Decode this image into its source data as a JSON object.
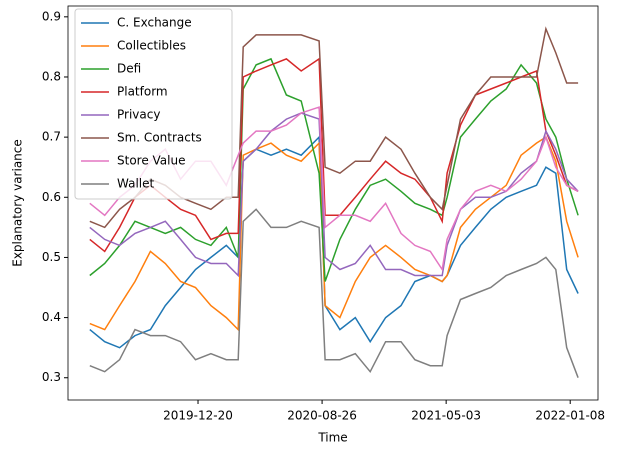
{
  "chart_data": {
    "type": "line",
    "xlabel": "Time",
    "ylabel": "Explanatory variance",
    "x": [
      "2019-05-16",
      "2019-06-15",
      "2019-07-15",
      "2019-08-15",
      "2019-09-15",
      "2019-10-15",
      "2019-11-15",
      "2019-12-15",
      "2020-01-15",
      "2020-02-15",
      "2020-03-10",
      "2020-03-20",
      "2020-04-15",
      "2020-05-15",
      "2020-06-15",
      "2020-07-15",
      "2020-08-20",
      "2020-09-01",
      "2020-10-01",
      "2020-11-01",
      "2020-12-01",
      "2021-01-01",
      "2021-02-01",
      "2021-03-01",
      "2021-04-01",
      "2021-04-25",
      "2021-05-05",
      "2021-06-01",
      "2021-07-01",
      "2021-08-01",
      "2021-09-01",
      "2021-10-01",
      "2021-11-01",
      "2021-11-20",
      "2021-12-10",
      "2022-01-01",
      "2022-01-24"
    ],
    "series": [
      {
        "name": "C. Exchange",
        "color": "#1f77b4",
        "values": [
          0.38,
          0.36,
          0.35,
          0.37,
          0.38,
          0.42,
          0.45,
          0.48,
          0.5,
          0.52,
          0.5,
          0.66,
          0.68,
          0.67,
          0.68,
          0.67,
          0.7,
          0.42,
          0.38,
          0.4,
          0.36,
          0.4,
          0.42,
          0.46,
          0.47,
          0.46,
          0.47,
          0.52,
          0.55,
          0.58,
          0.6,
          0.61,
          0.62,
          0.65,
          0.64,
          0.48,
          0.44
        ]
      },
      {
        "name": "Collectibles",
        "color": "#ff7f0e",
        "values": [
          0.39,
          0.38,
          0.42,
          0.46,
          0.51,
          0.49,
          0.46,
          0.45,
          0.42,
          0.4,
          0.38,
          0.67,
          0.68,
          0.69,
          0.67,
          0.66,
          0.69,
          0.42,
          0.4,
          0.46,
          0.5,
          0.52,
          0.5,
          0.48,
          0.47,
          0.46,
          0.47,
          0.55,
          0.58,
          0.6,
          0.62,
          0.67,
          0.69,
          0.7,
          0.66,
          0.56,
          0.5
        ]
      },
      {
        "name": "Defi",
        "color": "#2ca02c",
        "values": [
          0.47,
          0.49,
          0.52,
          0.56,
          0.55,
          0.54,
          0.55,
          0.53,
          0.52,
          0.55,
          0.5,
          0.78,
          0.82,
          0.83,
          0.77,
          0.76,
          0.64,
          0.46,
          0.53,
          0.58,
          0.62,
          0.63,
          0.61,
          0.59,
          0.58,
          0.57,
          0.6,
          0.7,
          0.73,
          0.76,
          0.78,
          0.82,
          0.79,
          0.73,
          0.7,
          0.63,
          0.57
        ]
      },
      {
        "name": "Platform",
        "color": "#d62728",
        "values": [
          0.53,
          0.51,
          0.55,
          0.6,
          0.62,
          0.6,
          0.58,
          0.57,
          0.53,
          0.54,
          0.54,
          0.8,
          0.81,
          0.82,
          0.83,
          0.81,
          0.83,
          0.57,
          0.57,
          0.6,
          0.63,
          0.66,
          0.64,
          0.63,
          0.6,
          0.56,
          0.64,
          0.72,
          0.77,
          0.78,
          0.79,
          0.8,
          0.81,
          0.71,
          0.67,
          0.62,
          0.61
        ]
      },
      {
        "name": "Privacy",
        "color": "#9467bd",
        "values": [
          0.55,
          0.53,
          0.52,
          0.54,
          0.55,
          0.56,
          0.53,
          0.5,
          0.49,
          0.49,
          0.47,
          0.66,
          0.68,
          0.71,
          0.73,
          0.74,
          0.73,
          0.5,
          0.48,
          0.49,
          0.52,
          0.48,
          0.48,
          0.47,
          0.47,
          0.47,
          0.52,
          0.58,
          0.6,
          0.6,
          0.61,
          0.64,
          0.66,
          0.71,
          0.68,
          0.63,
          0.61
        ]
      },
      {
        "name": "Sm. Contracts",
        "color": "#8c564b",
        "values": [
          0.56,
          0.55,
          0.58,
          0.6,
          0.63,
          0.62,
          0.6,
          0.59,
          0.58,
          0.6,
          0.6,
          0.85,
          0.87,
          0.87,
          0.87,
          0.87,
          0.86,
          0.65,
          0.64,
          0.66,
          0.66,
          0.7,
          0.68,
          0.64,
          0.6,
          0.58,
          0.62,
          0.73,
          0.77,
          0.8,
          0.8,
          0.8,
          0.8,
          0.88,
          0.84,
          0.79,
          0.79
        ]
      },
      {
        "name": "Store Value",
        "color": "#e377c2",
        "values": [
          0.59,
          0.57,
          0.6,
          0.62,
          0.66,
          0.68,
          0.63,
          0.66,
          0.66,
          0.62,
          0.67,
          0.69,
          0.71,
          0.71,
          0.72,
          0.74,
          0.75,
          0.55,
          0.57,
          0.57,
          0.56,
          0.59,
          0.54,
          0.52,
          0.51,
          0.48,
          0.53,
          0.58,
          0.61,
          0.62,
          0.61,
          0.63,
          0.66,
          0.7,
          0.65,
          0.62,
          0.61
        ]
      },
      {
        "name": "Wallet",
        "color": "#7f7f7f",
        "values": [
          0.32,
          0.31,
          0.33,
          0.38,
          0.37,
          0.37,
          0.36,
          0.33,
          0.34,
          0.33,
          0.33,
          0.56,
          0.58,
          0.55,
          0.55,
          0.56,
          0.55,
          0.33,
          0.33,
          0.34,
          0.31,
          0.36,
          0.36,
          0.33,
          0.32,
          0.32,
          0.37,
          0.43,
          0.44,
          0.45,
          0.47,
          0.48,
          0.49,
          0.5,
          0.48,
          0.35,
          0.3
        ]
      }
    ],
    "xlim": [
      "2019-04-02",
      "2022-03-05"
    ],
    "xticks": [
      "2019-12-20",
      "2020-08-26",
      "2021-05-03",
      "2022-01-08"
    ],
    "ylim": [
      0.263,
      0.918
    ],
    "yticks": [
      0.3,
      0.4,
      0.5,
      0.6,
      0.7,
      0.8,
      0.9
    ],
    "legend": "upper left",
    "grid": false
  }
}
